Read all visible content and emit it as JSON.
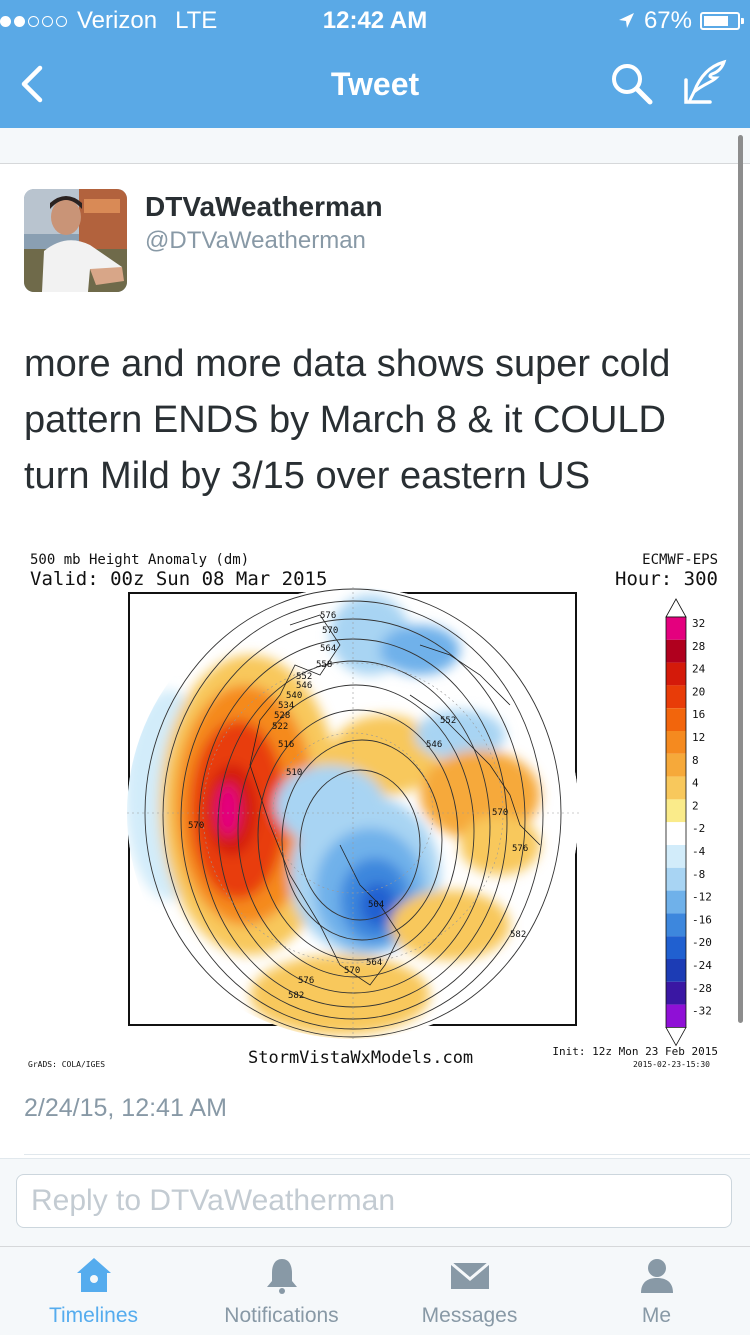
{
  "status_bar": {
    "carrier": "Verizon",
    "network": "LTE",
    "time": "12:42 AM",
    "battery": "67%"
  },
  "nav": {
    "title": "Tweet"
  },
  "tweet": {
    "name": "DTVaWeatherman",
    "handle": "@DTVaWeatherman",
    "text": "more and more data shows super cold pattern ENDS by March 8 &  it COULD turn Mild by 3/15 over eastern US",
    "timestamp": "2/24/15, 12:41 AM"
  },
  "map_image": {
    "title_line1": "500 mb Height Anomaly (dm)",
    "title_line2": "Valid: 00z Sun 08 Mar 2015",
    "model": "ECMWF-EPS",
    "hour": "Hour: 300",
    "source": "StormVistaWxModels.com",
    "grads": "GrADS: COLA/IGES",
    "init": "Init: 12z Mon 23 Feb 2015",
    "init_stamp": "2015-02-23-15:30",
    "legend_values": [
      "32",
      "28",
      "24",
      "20",
      "16",
      "12",
      "8",
      "4",
      "2",
      "-2",
      "-4",
      "-8",
      "-12",
      "-16",
      "-20",
      "-24",
      "-28",
      "-32"
    ],
    "legend_colors": [
      "#e4007e",
      "#b0001e",
      "#d41a0a",
      "#e83c08",
      "#f2650c",
      "#f58a1f",
      "#f6a93a",
      "#f8c85c",
      "#faeb8a",
      "#ffffff",
      "#d2ecfa",
      "#a8d4f3",
      "#6fb1ea",
      "#3d87dd",
      "#2060d0",
      "#1c3cb5",
      "#3a17a3",
      "#8f10d6"
    ],
    "contour_labels": [
      "576",
      "570",
      "564",
      "558",
      "552",
      "546",
      "540",
      "534",
      "528",
      "522",
      "516",
      "510",
      "552",
      "546",
      "570",
      "576",
      "570",
      "504",
      "582",
      "570",
      "576",
      "582",
      "564"
    ]
  },
  "reply": {
    "placeholder": "Reply to DTVaWeatherman"
  },
  "tabs": [
    {
      "label": "Timelines",
      "icon": "home-icon"
    },
    {
      "label": "Notifications",
      "icon": "bell-icon"
    },
    {
      "label": "Messages",
      "icon": "envelope-icon"
    },
    {
      "label": "Me",
      "icon": "person-icon"
    }
  ],
  "colors": {
    "accent": "#5aa9e6",
    "tab_active": "#55acee",
    "muted": "#8899a6"
  }
}
